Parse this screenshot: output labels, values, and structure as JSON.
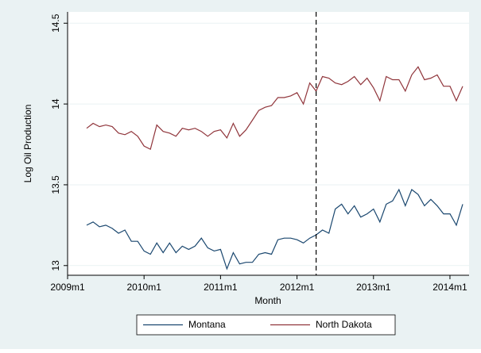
{
  "chart_data": {
    "type": "line",
    "y_label": "Log Oil Production",
    "x_label": "Month",
    "x": [
      "2009m4",
      "2009m5",
      "2009m6",
      "2009m7",
      "2009m8",
      "2009m9",
      "2009m10",
      "2009m11",
      "2009m12",
      "2010m1",
      "2010m2",
      "2010m3",
      "2010m4",
      "2010m5",
      "2010m6",
      "2010m7",
      "2010m8",
      "2010m9",
      "2010m10",
      "2010m11",
      "2010m12",
      "2011m1",
      "2011m2",
      "2011m3",
      "2011m4",
      "2011m5",
      "2011m6",
      "2011m7",
      "2011m8",
      "2011m9",
      "2011m10",
      "2011m11",
      "2011m12",
      "2012m1",
      "2012m2",
      "2012m3",
      "2012m4",
      "2012m5",
      "2012m6",
      "2012m7",
      "2012m8",
      "2012m9",
      "2012m10",
      "2012m11",
      "2012m12",
      "2013m1",
      "2013m2",
      "2013m3",
      "2013m4",
      "2013m5",
      "2013m6",
      "2013m7",
      "2013m8",
      "2013m9",
      "2013m10",
      "2013m11",
      "2013m12",
      "2014m1",
      "2014m2",
      "2014m3"
    ],
    "series": [
      {
        "name": "Montana",
        "color": "#1a476f",
        "values": [
          13.25,
          13.27,
          13.24,
          13.25,
          13.23,
          13.2,
          13.22,
          13.15,
          13.15,
          13.09,
          13.07,
          13.14,
          13.08,
          13.14,
          13.08,
          13.12,
          13.1,
          13.12,
          13.17,
          13.11,
          13.09,
          13.1,
          12.98,
          13.08,
          13.01,
          13.02,
          13.02,
          13.07,
          13.08,
          13.07,
          13.16,
          13.17,
          13.17,
          13.16,
          13.14,
          13.17,
          13.19,
          13.22,
          13.2,
          13.35,
          13.38,
          13.32,
          13.37,
          13.3,
          13.32,
          13.35,
          13.27,
          13.38,
          13.4,
          13.47,
          13.37,
          13.47,
          13.44,
          13.37,
          13.41,
          13.37,
          13.32,
          13.32,
          13.25,
          13.38
        ]
      },
      {
        "name": "North Dakota",
        "color": "#90353b",
        "values": [
          13.85,
          13.88,
          13.86,
          13.87,
          13.86,
          13.82,
          13.81,
          13.83,
          13.8,
          13.74,
          13.72,
          13.87,
          13.83,
          13.82,
          13.8,
          13.85,
          13.84,
          13.85,
          13.83,
          13.8,
          13.83,
          13.84,
          13.79,
          13.88,
          13.8,
          13.84,
          13.9,
          13.96,
          13.98,
          13.99,
          14.04,
          14.04,
          14.05,
          14.07,
          14.0,
          14.13,
          14.08,
          14.17,
          14.16,
          14.13,
          14.12,
          14.14,
          14.17,
          14.12,
          14.16,
          14.1,
          14.02,
          14.17,
          14.15,
          14.15,
          14.08,
          14.18,
          14.23,
          14.15,
          14.16,
          14.18,
          14.11,
          14.11,
          14.02,
          14.11
        ]
      }
    ],
    "vline": "2012m4",
    "xlim": [
      "2009m1",
      "2014m4"
    ],
    "xticks": [
      "2009m1",
      "2010m1",
      "2011m1",
      "2012m1",
      "2013m1",
      "2014m1"
    ],
    "ylim": [
      12.94,
      14.57
    ],
    "yticks": [
      13,
      13.5,
      14,
      14.5
    ],
    "grid": true,
    "legend": "bottom"
  }
}
